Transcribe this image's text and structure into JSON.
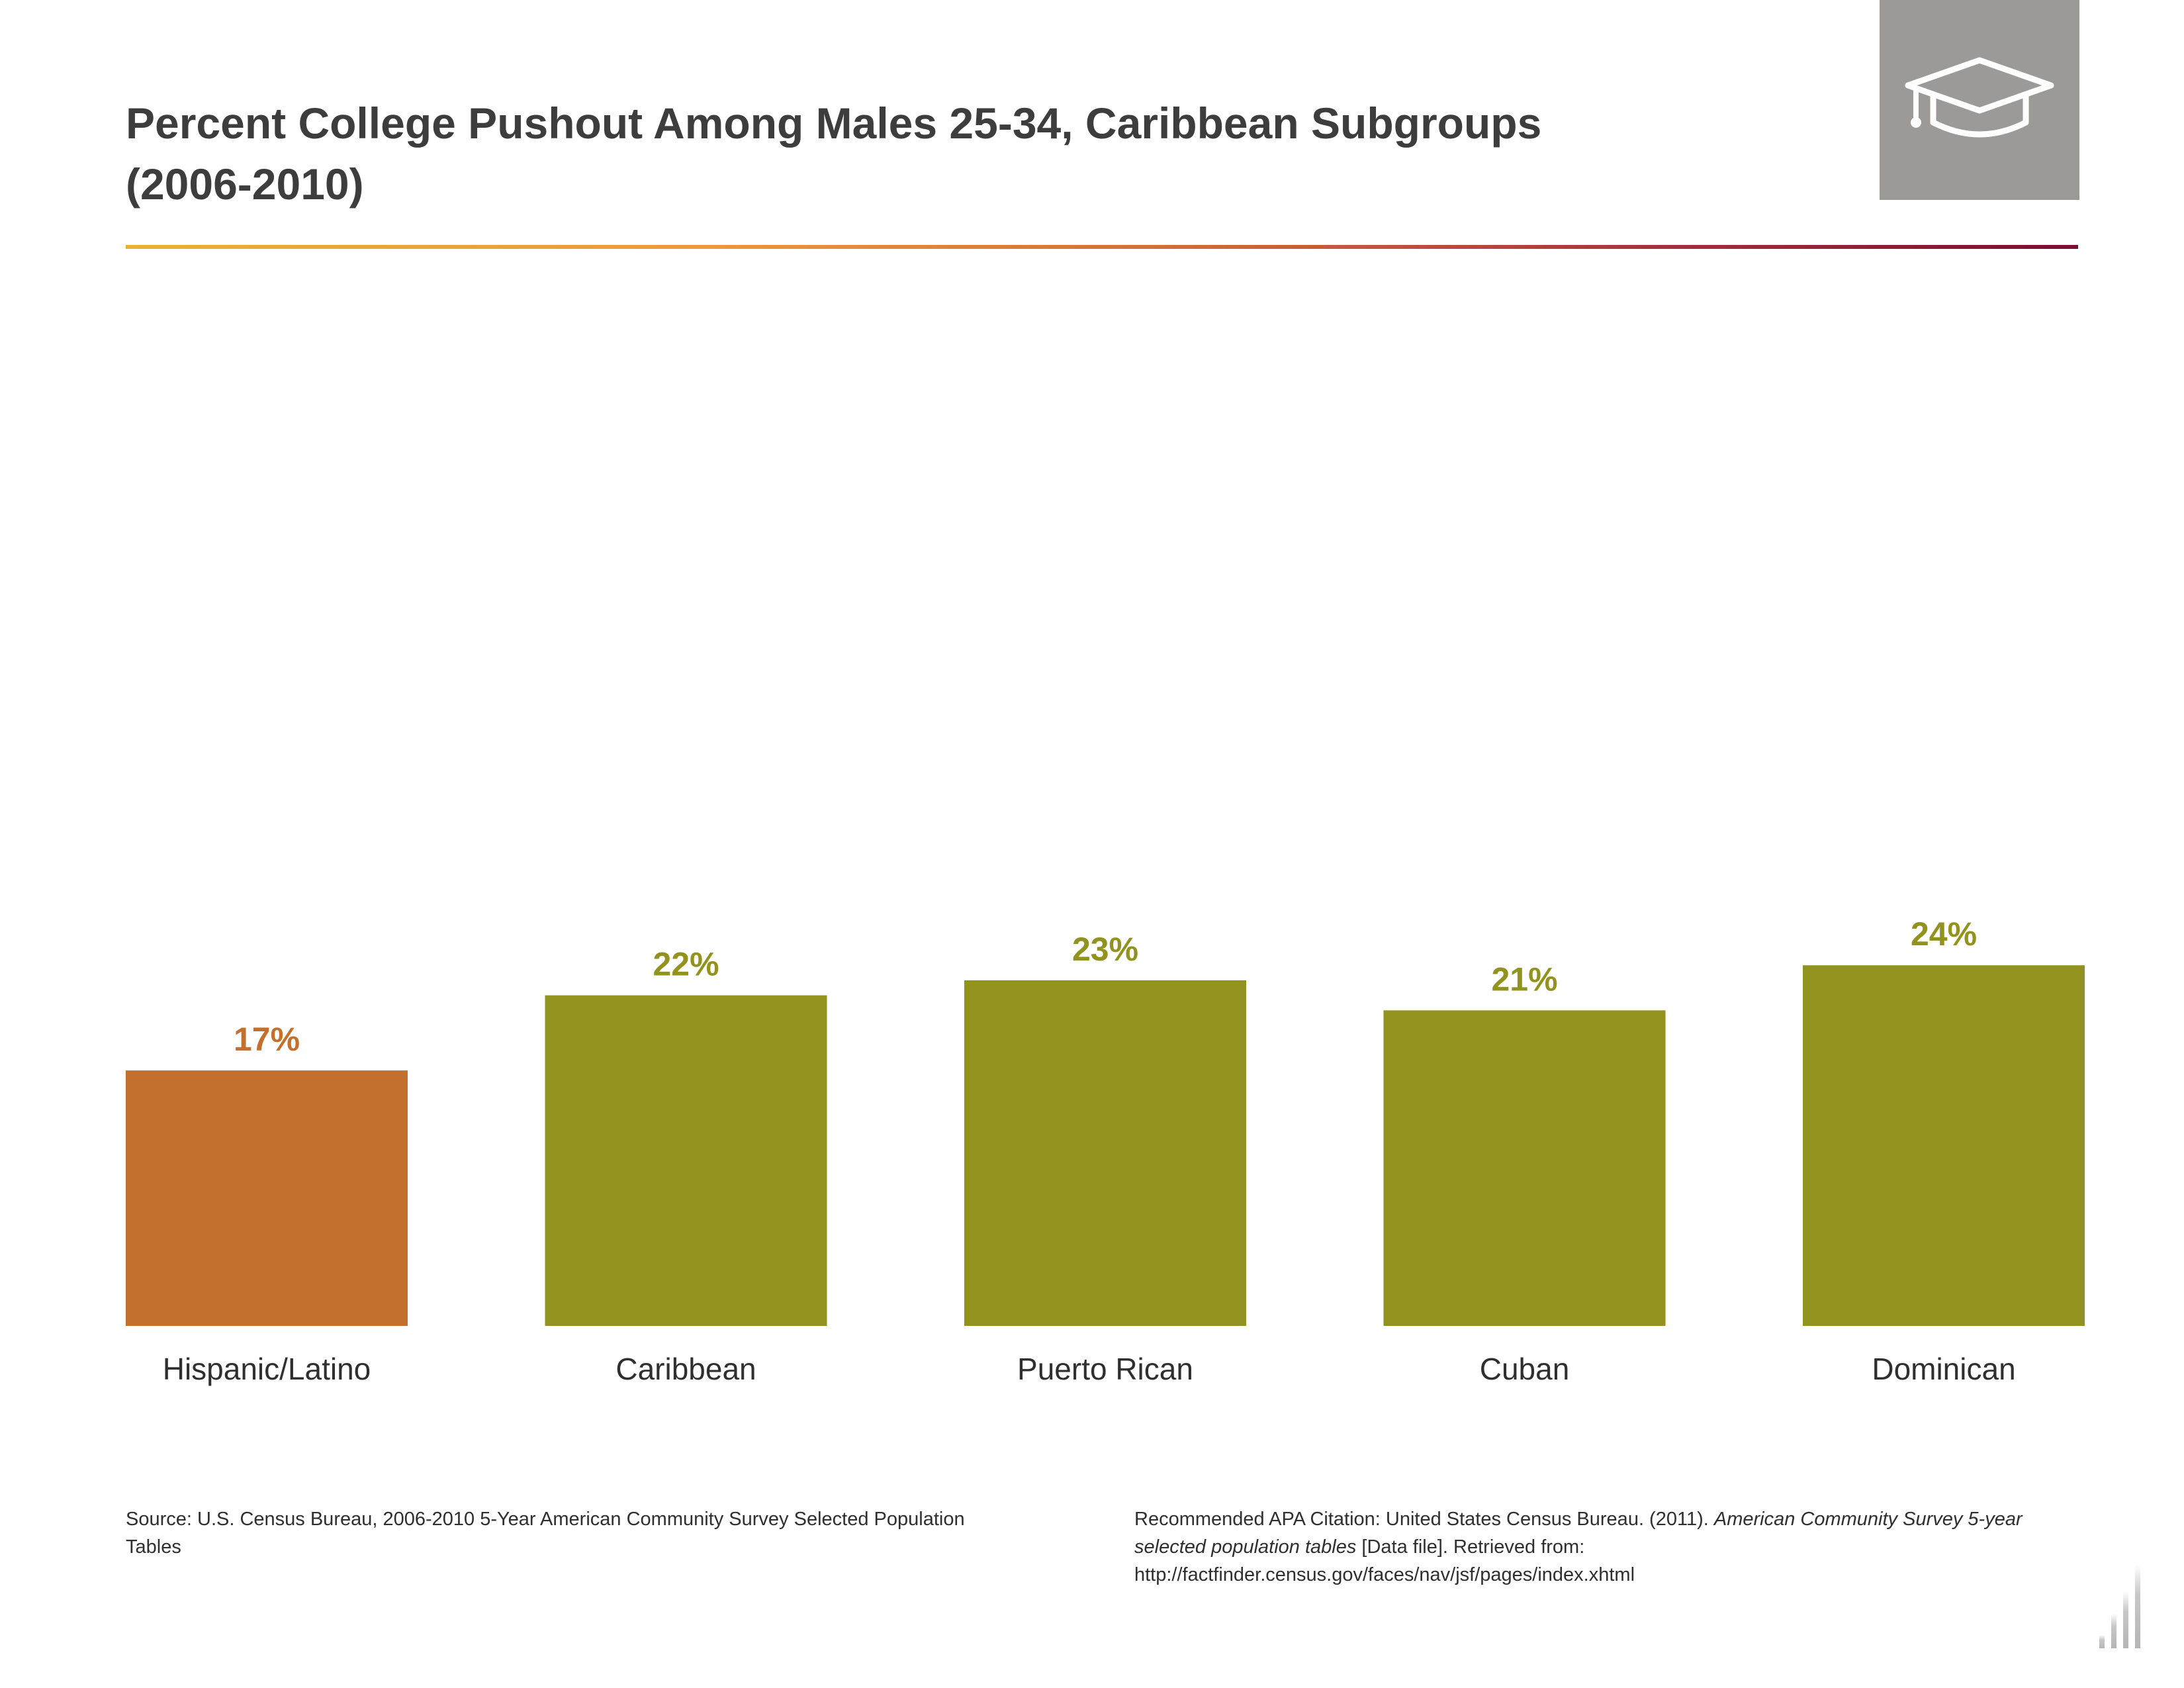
{
  "title_line1": "Percent College Pushout Among Males 25-34, Caribbean Subgroups",
  "title_line2": "(2006-2010)",
  "header_icon": "graduation-cap-icon",
  "colors": {
    "highlight_bar": "#c3702f",
    "bar": "#92921f",
    "icon_box": "#9c9a99",
    "text": "#3a3a3a"
  },
  "chart_data": {
    "type": "bar",
    "title": "Percent College Pushout Among Males 25-34, Caribbean Subgroups (2006-2010)",
    "categories": [
      "Hispanic/Latino",
      "Caribbean",
      "Puerto Rican",
      "Cuban",
      "Dominican"
    ],
    "values": [
      17,
      22,
      23,
      21,
      24
    ],
    "value_labels": [
      "17%",
      "22%",
      "23%",
      "21%",
      "24%"
    ],
    "unit": "%",
    "highlight_index": 0,
    "xlabel": "",
    "ylabel": "",
    "ylim": [
      0,
      100
    ],
    "grid": false,
    "legend": "none"
  },
  "footer": {
    "source": "Source: U.S. Census Bureau, 2006-2010 5-Year American Community Survey Selected Population Tables",
    "citation_prefix": "Recommended APA Citation: United States Census Bureau. (2011). ",
    "citation_italic": "American Community Survey 5-year selected population tables",
    "citation_suffix": " [Data file]. Retrieved from: http://factfinder.census.gov/faces/nav/jsf/pages/index.xhtml"
  },
  "logo_icon": "bar-chart-logo-icon"
}
